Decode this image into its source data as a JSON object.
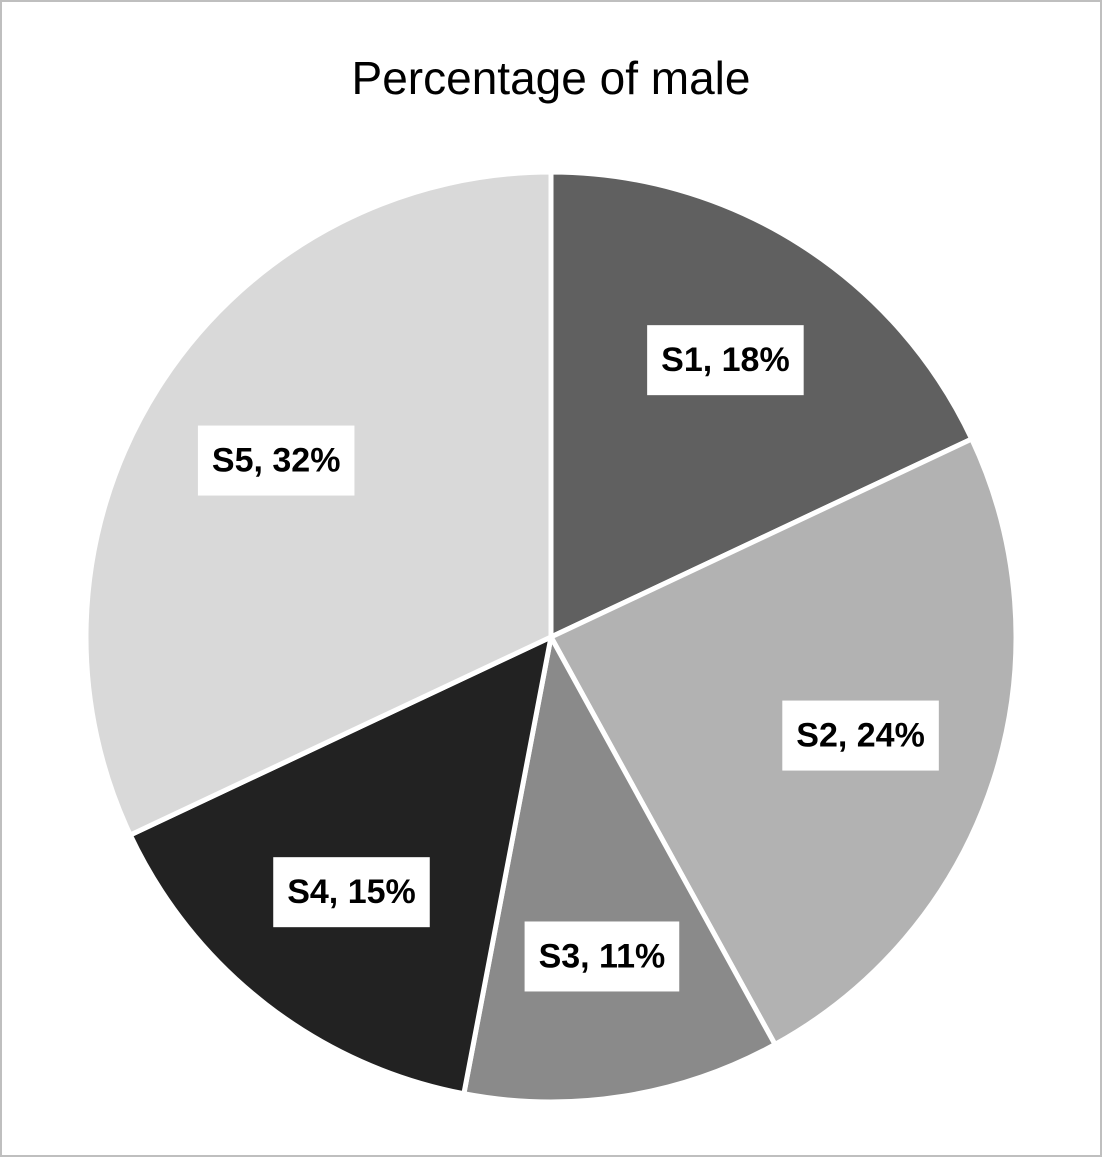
{
  "chart_data": {
    "type": "pie",
    "title": "Percentage of male",
    "values": [
      18,
      24,
      11,
      15,
      32
    ],
    "value_labels": [
      "S1, 18%",
      "S2, 24%",
      "S3, 11%",
      "S4, 15%",
      "S5, 32%"
    ],
    "colors": [
      "#606060",
      "#b2b2b2",
      "#8a8a8a",
      "#222222",
      "#d9d9d9"
    ]
  }
}
